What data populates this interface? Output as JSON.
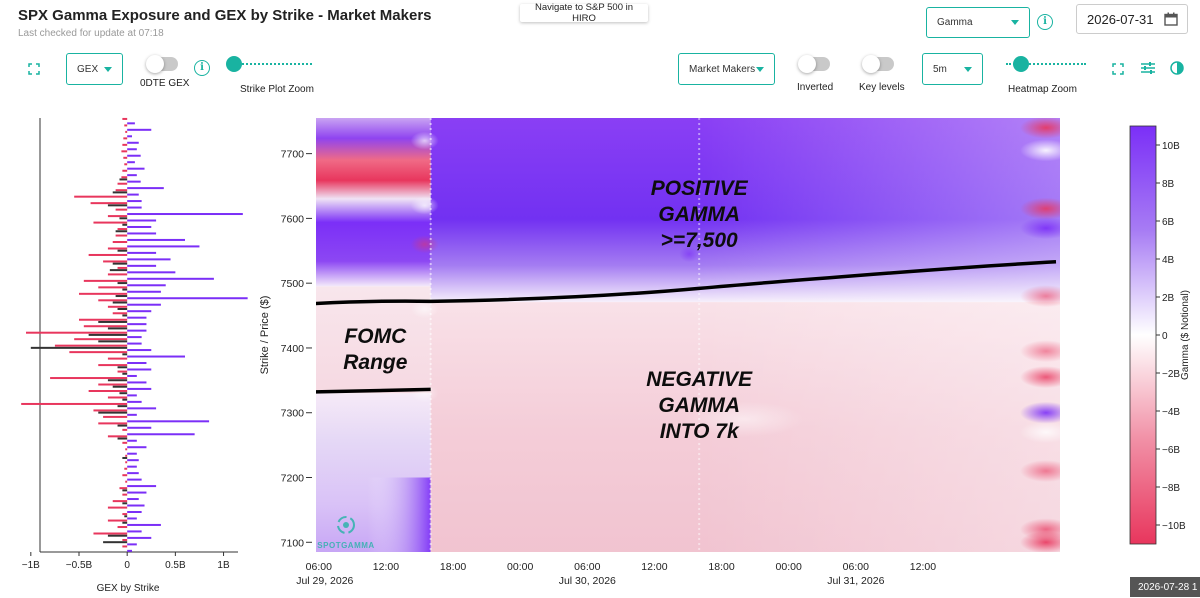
{
  "header": {
    "title": "SPX Gamma Exposure and GEX by Strike - Market Makers",
    "last_checked": "Last checked for update at 07:18",
    "hiro_button": "Navigate to S&P 500 in HIRO",
    "metric_select": "Gamma",
    "date_value": "2026-07-31"
  },
  "toolbar": {
    "gex_select": "GEX",
    "zero_dte_label": "0DTE GEX",
    "strike_zoom_label": "Strike Plot Zoom",
    "participant_select": "Market Makers",
    "inverted_label": "Inverted",
    "key_levels_label": "Key levels",
    "interval_select": "5m",
    "heatmap_zoom_label": "Heatmap Zoom"
  },
  "icons": {
    "expand": "expand-icon",
    "info": "info-icon",
    "settings": "sliders-icon",
    "theme": "contrast-icon",
    "calendar": "calendar-icon"
  },
  "colors": {
    "accent": "#19b3a1",
    "positive": "#7b2ff7",
    "negative": "#e8365d",
    "dark_bar": "#333333"
  },
  "footer": {
    "date_tag": "2026-07-28 1"
  },
  "watermark": "SPOTGAMMA",
  "chart_data": [
    {
      "type": "bar",
      "orientation": "horizontal",
      "xlabel": "GEX by Strike",
      "x_ticks": [
        "−1B",
        "−0.5B",
        "0",
        "0.5B",
        "1B"
      ],
      "x_tick_values": [
        -1,
        -0.5,
        0,
        0.5,
        1
      ],
      "xlim": [
        -1.05,
        1.15
      ],
      "ylim": [
        7085,
        7755
      ],
      "series_colors": [
        "#e8365d",
        "#333333",
        "#7b2ff7"
      ],
      "bars": [
        {
          "strike": 7750,
          "values": [
            -0.05,
            0,
            0.08
          ]
        },
        {
          "strike": 7740,
          "values": [
            -0.03,
            0,
            0.25
          ]
        },
        {
          "strike": 7730,
          "values": [
            -0.02,
            0,
            0.05
          ]
        },
        {
          "strike": 7720,
          "values": [
            -0.04,
            0,
            0.12
          ]
        },
        {
          "strike": 7710,
          "values": [
            -0.05,
            0,
            0.1
          ]
        },
        {
          "strike": 7700,
          "values": [
            -0.06,
            0,
            0.14
          ]
        },
        {
          "strike": 7690,
          "values": [
            -0.04,
            0,
            0.08
          ]
        },
        {
          "strike": 7680,
          "values": [
            -0.03,
            0,
            0.18
          ]
        },
        {
          "strike": 7670,
          "values": [
            -0.05,
            0,
            0.1
          ]
        },
        {
          "strike": 7660,
          "values": [
            -0.06,
            -0.08,
            0.14
          ]
        },
        {
          "strike": 7650,
          "values": [
            -0.1,
            0,
            0.38
          ]
        },
        {
          "strike": 7640,
          "values": [
            -0.12,
            -0.15,
            0.12
          ]
        },
        {
          "strike": 7630,
          "values": [
            -0.55,
            0,
            0.15
          ]
        },
        {
          "strike": 7620,
          "values": [
            -0.38,
            -0.2,
            0.15
          ]
        },
        {
          "strike": 7610,
          "values": [
            -0.12,
            0,
            1.2
          ]
        },
        {
          "strike": 7600,
          "values": [
            -0.2,
            -0.08,
            0.3
          ]
        },
        {
          "strike": 7590,
          "values": [
            -0.35,
            -0.05,
            0.25
          ]
        },
        {
          "strike": 7580,
          "values": [
            -0.1,
            -0.12,
            0.3
          ]
        },
        {
          "strike": 7570,
          "values": [
            -0.12,
            0,
            0.6
          ]
        },
        {
          "strike": 7560,
          "values": [
            -0.15,
            0,
            0.75
          ]
        },
        {
          "strike": 7550,
          "values": [
            -0.2,
            -0.1,
            0.3
          ]
        },
        {
          "strike": 7540,
          "values": [
            -0.4,
            0,
            0.45
          ]
        },
        {
          "strike": 7530,
          "values": [
            -0.25,
            -0.15,
            0.3
          ]
        },
        {
          "strike": 7520,
          "values": [
            -0.1,
            -0.18,
            0.5
          ]
        },
        {
          "strike": 7510,
          "values": [
            -0.2,
            0,
            0.9
          ]
        },
        {
          "strike": 7500,
          "values": [
            -0.45,
            -0.1,
            0.4
          ]
        },
        {
          "strike": 7490,
          "values": [
            -0.3,
            -0.05,
            0.35
          ]
        },
        {
          "strike": 7480,
          "values": [
            -0.5,
            -0.12,
            1.25
          ]
        },
        {
          "strike": 7470,
          "values": [
            -0.3,
            -0.15,
            0.35
          ]
        },
        {
          "strike": 7460,
          "values": [
            -0.2,
            -0.1,
            0.25
          ]
        },
        {
          "strike": 7450,
          "values": [
            -0.15,
            -0.05,
            0.2
          ]
        },
        {
          "strike": 7440,
          "values": [
            -0.5,
            -0.3,
            0.2
          ]
        },
        {
          "strike": 7430,
          "values": [
            -0.45,
            -0.2,
            0.2
          ]
        },
        {
          "strike": 7420,
          "values": [
            -1.05,
            -0.4,
            0.15
          ]
        },
        {
          "strike": 7410,
          "values": [
            -0.55,
            -0.3,
            0.15
          ]
        },
        {
          "strike": 7400,
          "values": [
            -0.75,
            -1.0,
            0.25
          ]
        },
        {
          "strike": 7390,
          "values": [
            -0.6,
            -0.05,
            0.6
          ]
        },
        {
          "strike": 7380,
          "values": [
            -0.2,
            0,
            0.2
          ]
        },
        {
          "strike": 7370,
          "values": [
            -0.3,
            -0.1,
            0.25
          ]
        },
        {
          "strike": 7360,
          "values": [
            -0.1,
            -0.05,
            0.1
          ]
        },
        {
          "strike": 7350,
          "values": [
            -0.8,
            -0.2,
            0.2
          ]
        },
        {
          "strike": 7340,
          "values": [
            -0.3,
            -0.15,
            0.25
          ]
        },
        {
          "strike": 7330,
          "values": [
            -0.4,
            -0.08,
            0.1
          ]
        },
        {
          "strike": 7320,
          "values": [
            -0.2,
            -0.05,
            0.15
          ]
        },
        {
          "strike": 7310,
          "values": [
            -1.1,
            -0.1,
            0.3
          ]
        },
        {
          "strike": 7300,
          "values": [
            -0.35,
            -0.3,
            0.1
          ]
        },
        {
          "strike": 7290,
          "values": [
            -0.25,
            0,
            0.85
          ]
        },
        {
          "strike": 7280,
          "values": [
            -0.3,
            -0.1,
            0.25
          ]
        },
        {
          "strike": 7270,
          "values": [
            -0.05,
            0,
            0.7
          ]
        },
        {
          "strike": 7260,
          "values": [
            -0.2,
            -0.1,
            0.1
          ]
        },
        {
          "strike": 7250,
          "values": [
            -0.05,
            0,
            0.2
          ]
        },
        {
          "strike": 7240,
          "values": [
            -0.02,
            0,
            0.1
          ]
        },
        {
          "strike": 7230,
          "values": [
            -0.02,
            -0.05,
            0.12
          ]
        },
        {
          "strike": 7220,
          "values": [
            -0.02,
            0,
            0.1
          ]
        },
        {
          "strike": 7210,
          "values": [
            -0.03,
            0,
            0.12
          ]
        },
        {
          "strike": 7200,
          "values": [
            -0.05,
            0,
            0.15
          ]
        },
        {
          "strike": 7190,
          "values": [
            -0.02,
            0,
            0.3
          ]
        },
        {
          "strike": 7180,
          "values": [
            -0.08,
            -0.05,
            0.2
          ]
        },
        {
          "strike": 7170,
          "values": [
            -0.05,
            0,
            0.12
          ]
        },
        {
          "strike": 7160,
          "values": [
            -0.15,
            -0.05,
            0.18
          ]
        },
        {
          "strike": 7150,
          "values": [
            -0.2,
            0,
            0.15
          ]
        },
        {
          "strike": 7140,
          "values": [
            -0.05,
            -0.03,
            0.1
          ]
        },
        {
          "strike": 7130,
          "values": [
            -0.2,
            -0.05,
            0.35
          ]
        },
        {
          "strike": 7120,
          "values": [
            -0.1,
            0,
            0.15
          ]
        },
        {
          "strike": 7110,
          "values": [
            -0.35,
            -0.2,
            0.25
          ]
        },
        {
          "strike": 7100,
          "values": [
            -0.05,
            -0.25,
            0.1
          ]
        },
        {
          "strike": 7090,
          "values": [
            -0.05,
            0,
            0.05
          ]
        }
      ]
    },
    {
      "type": "heatmap",
      "ylabel": "Strike / Price ($)",
      "ylim": [
        7085,
        7755
      ],
      "y_ticks": [
        7100,
        7200,
        7300,
        7400,
        7500,
        7600,
        7700
      ],
      "y_tick_labels": [
        "7100",
        "7200",
        "7300",
        "7400",
        "7500",
        "7600",
        "7700"
      ],
      "x_ticks": [
        "06:00",
        "12:00",
        "18:00",
        "00:00",
        "06:00",
        "12:00",
        "18:00",
        "00:00",
        "06:00",
        "12:00"
      ],
      "x_dates": [
        "Jul 29, 2026",
        "Jul 30, 2026",
        "Jul 31, 2026"
      ],
      "colorbar": {
        "label": "Gamma ($ Notional)",
        "ticks": [
          "10B",
          "8B",
          "6B",
          "4B",
          "2B",
          "0",
          "−2B",
          "−4B",
          "−6B",
          "−8B",
          "−10B"
        ],
        "range": [
          -11,
          11
        ]
      },
      "regions": [
        {
          "name": "jul29-upper-positive",
          "y_range": [
            7495,
            7755
          ]
        },
        {
          "name": "jul29-lower-positive",
          "y_range": [
            7085,
            7330
          ]
        },
        {
          "name": "jul30-31-positive",
          "y_range": [
            7480,
            7755
          ]
        },
        {
          "name": "jul30-31-negative",
          "y_range": [
            7085,
            7480
          ]
        }
      ],
      "price_line": {
        "x": [
          "start",
          "Jul 29 16:00",
          "Jul 30 16:00",
          "end"
        ],
        "y": [
          7468,
          7472,
          7492,
          7533
        ]
      },
      "fomc_line": {
        "x": [
          "start",
          "Jul 29 16:00"
        ],
        "y": [
          7332,
          7336
        ]
      },
      "annotations": [
        {
          "text": "POSITIVE\nGAMMA\n>=7,500",
          "strike": 7610
        },
        {
          "text": "FOMC\nRange",
          "strike": 7400
        },
        {
          "text": "NEGATIVE\nGAMMA\nINTO 7k",
          "strike": 7315
        }
      ]
    }
  ]
}
